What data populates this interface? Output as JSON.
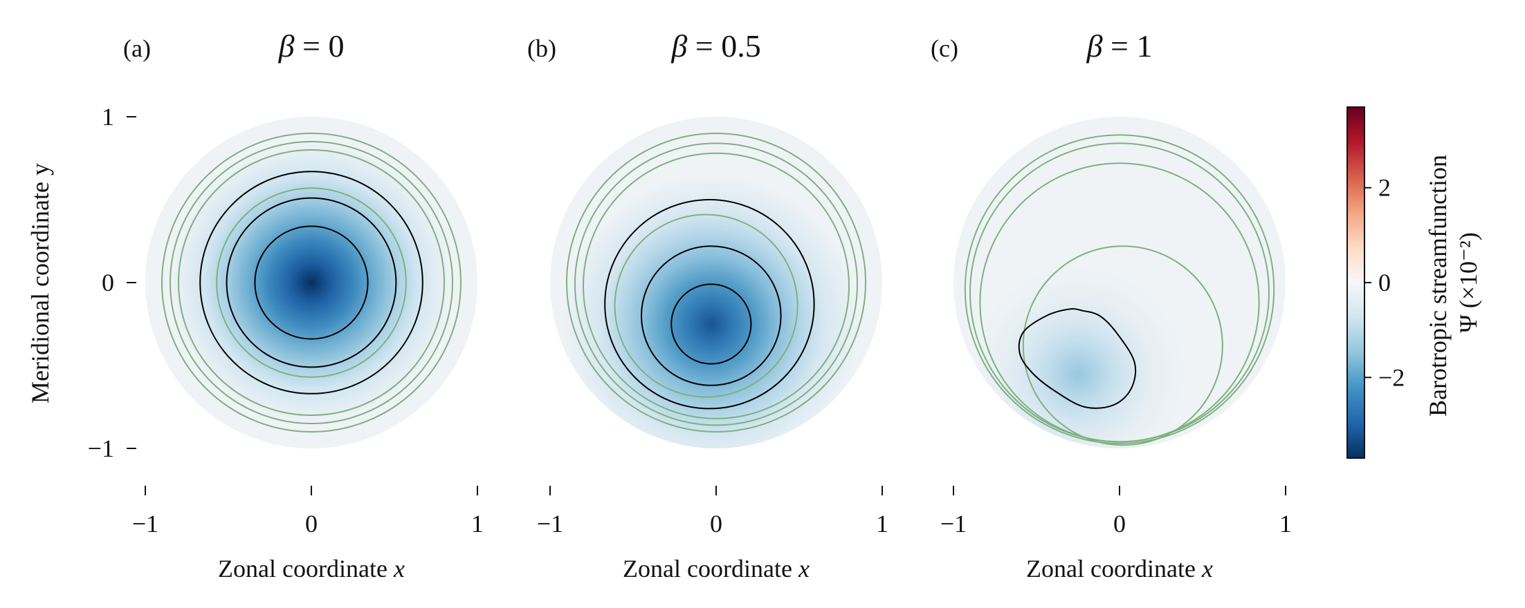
{
  "figure": {
    "ylabel": "Meridional coordinate y",
    "colorbar": {
      "label_line1": "Barotropic streamfunction",
      "label_line2": "Ψ (×10⁻²)",
      "ticks": [
        {
          "value": 2,
          "label": "2"
        },
        {
          "value": 0,
          "label": "0"
        },
        {
          "value": -2,
          "label": "−2"
        }
      ],
      "range": [
        -3.7,
        3.7
      ],
      "colormap": "RdBu_r",
      "colors": [
        "#053061",
        "#2166ac",
        "#4393c3",
        "#92c5de",
        "#d1e5f0",
        "#f7f7f7",
        "#fddbc7",
        "#f4a582",
        "#d6604d",
        "#b2182b",
        "#67001f"
      ]
    }
  },
  "chart_data": [
    {
      "type": "heatmap",
      "panel": "(a)",
      "title": "β = 0",
      "title_parts": {
        "symbol": "β",
        "value": "0"
      },
      "xlabel": "Zonal coordinate x",
      "ylabel": "Meridional coordinate y",
      "xlim": [
        -1,
        1
      ],
      "ylim": [
        -1,
        1
      ],
      "xticks": [
        {
          "value": -1,
          "label": "−1"
        },
        {
          "value": 0,
          "label": "0"
        },
        {
          "value": 1,
          "label": "1"
        }
      ],
      "yticks": [
        {
          "value": 1,
          "label": "1"
        },
        {
          "value": 0,
          "label": "0"
        },
        {
          "value": -1,
          "label": "−1"
        }
      ],
      "domain": "unit disk",
      "streamfunction_min": {
        "x": 0,
        "y": 0,
        "value": -3.7
      },
      "black_contours": [
        {
          "cx": 0,
          "cy": 0,
          "r": 0.34
        },
        {
          "cx": 0,
          "cy": 0,
          "r": 0.51
        },
        {
          "cx": 0,
          "cy": 0,
          "r": 0.67
        }
      ],
      "green_contours": [
        {
          "cx": 0,
          "cy": 0,
          "r": 0.57
        },
        {
          "cx": 0,
          "cy": 0,
          "r": 0.8
        },
        {
          "cx": 0,
          "cy": 0,
          "r": 0.85
        },
        {
          "cx": 0,
          "cy": 0,
          "r": 0.9
        }
      ]
    },
    {
      "type": "heatmap",
      "panel": "(b)",
      "title": "β = 0.5",
      "title_parts": {
        "symbol": "β",
        "value": "0.5"
      },
      "xlabel": "Zonal coordinate x",
      "xlim": [
        -1,
        1
      ],
      "ylim": [
        -1,
        1
      ],
      "xticks": [
        {
          "value": -1,
          "label": "−1"
        },
        {
          "value": 0,
          "label": "0"
        },
        {
          "value": 1,
          "label": "1"
        }
      ],
      "domain": "unit disk",
      "streamfunction_min": {
        "x": -0.03,
        "y": -0.25,
        "value": -3.2
      },
      "black_contours": [
        {
          "cx": -0.03,
          "cy": -0.25,
          "r": 0.24
        },
        {
          "cx": -0.03,
          "cy": -0.2,
          "r": 0.42
        },
        {
          "cx": -0.04,
          "cy": -0.13,
          "r": 0.63
        }
      ],
      "green_contours": [
        {
          "cx": -0.06,
          "cy": -0.14,
          "r": 0.55
        },
        {
          "cx": 0,
          "cy": -0.02,
          "r": 0.8
        },
        {
          "cx": 0,
          "cy": -0.01,
          "r": 0.85
        },
        {
          "cx": 0,
          "cy": 0,
          "r": 0.9
        }
      ]
    },
    {
      "type": "heatmap",
      "panel": "(c)",
      "title": "β = 1",
      "title_parts": {
        "symbol": "β",
        "value": "1"
      },
      "xlabel": "Zonal coordinate x",
      "xlim": [
        -1,
        1
      ],
      "ylim": [
        -1,
        1
      ],
      "xticks": [
        {
          "value": -1,
          "label": "−1"
        },
        {
          "value": 0,
          "label": "0"
        },
        {
          "value": 1,
          "label": "1"
        }
      ],
      "domain": "unit disk",
      "streamfunction_min": {
        "x": -0.25,
        "y": -0.55,
        "value": -1.4
      },
      "black_contour_closed_path": [
        [
          -0.22,
          -0.17
        ],
        [
          -0.12,
          -0.2
        ],
        [
          -0.02,
          -0.3
        ],
        [
          0.09,
          -0.48
        ],
        [
          0.07,
          -0.64
        ],
        [
          -0.04,
          -0.74
        ],
        [
          -0.21,
          -0.75
        ],
        [
          -0.38,
          -0.66
        ],
        [
          -0.52,
          -0.55
        ],
        [
          -0.6,
          -0.43
        ],
        [
          -0.58,
          -0.3
        ],
        [
          -0.44,
          -0.2
        ],
        [
          -0.3,
          -0.16
        ]
      ],
      "green_contours": [
        {
          "cx": 0.02,
          "cy": -0.38,
          "r": 0.6
        },
        {
          "cx": 0,
          "cy": -0.12,
          "r": 0.84
        },
        {
          "cx": 0,
          "cy": -0.06,
          "r": 0.9
        },
        {
          "cx": 0,
          "cy": -0.04,
          "r": 0.93
        }
      ]
    }
  ]
}
